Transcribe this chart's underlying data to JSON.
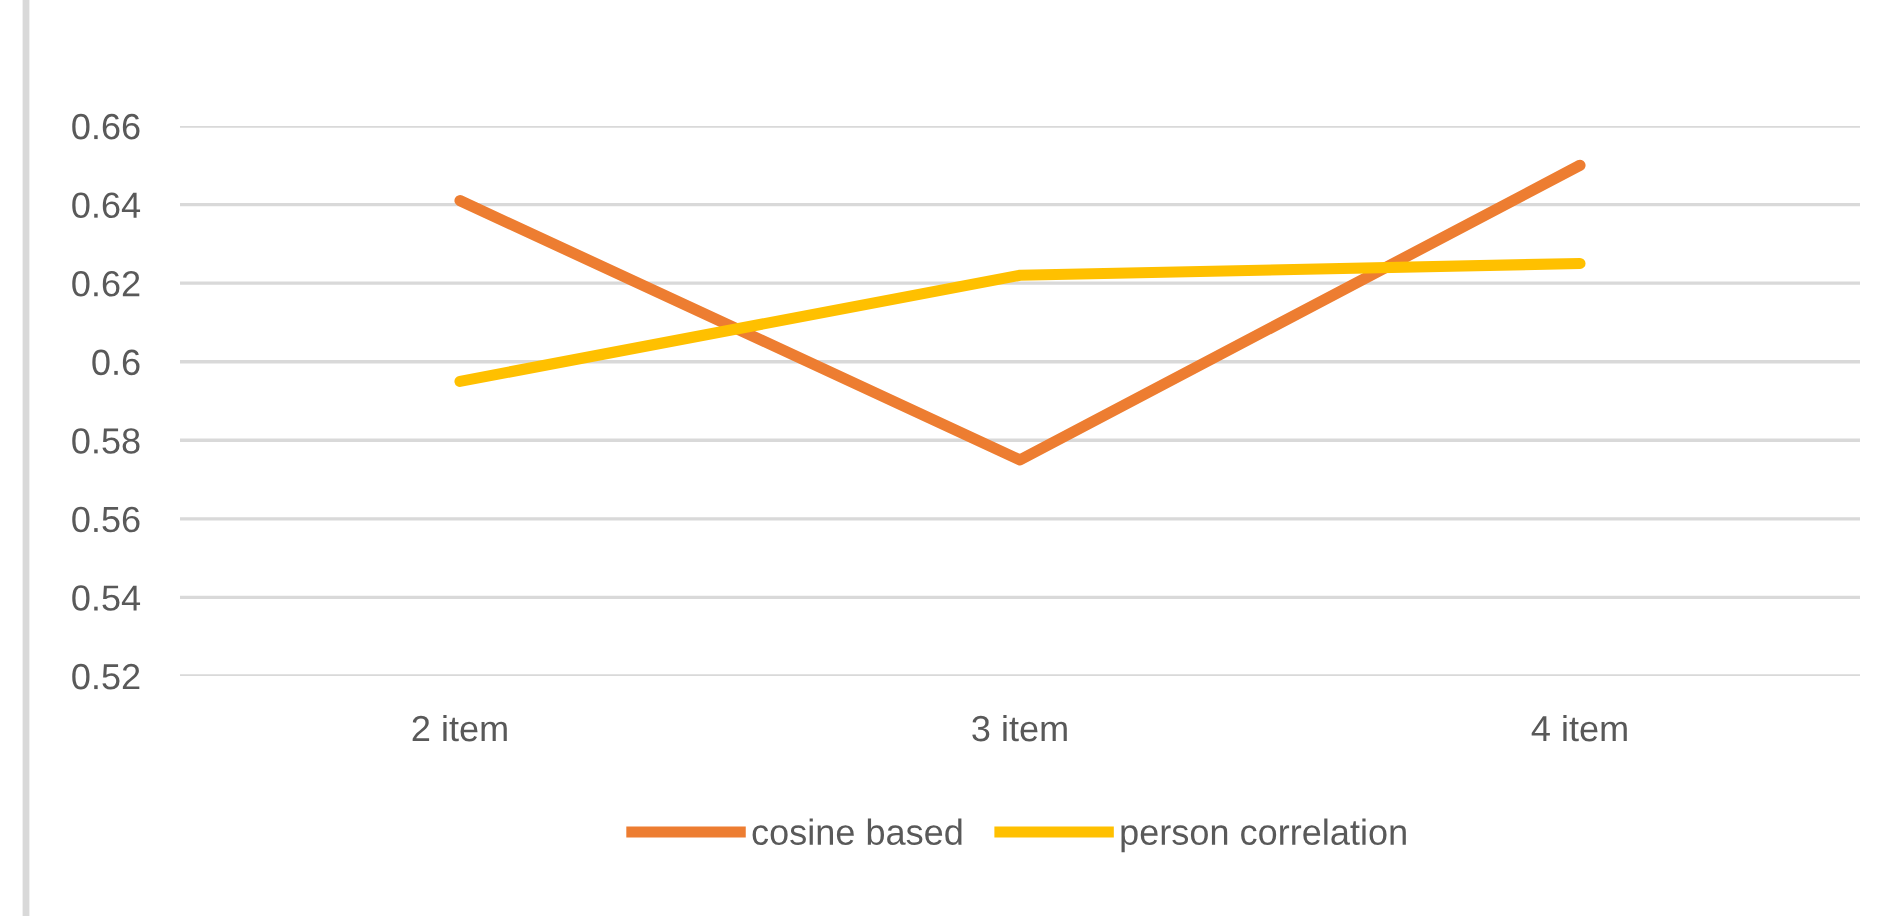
{
  "chart_data": {
    "type": "line",
    "categories": [
      "2 item",
      "3 item",
      "4 item"
    ],
    "series": [
      {
        "name": "cosine based",
        "color": "#ed7d31",
        "values": [
          0.641,
          0.575,
          0.65
        ]
      },
      {
        "name": "person correlation",
        "color": "#ffc000",
        "values": [
          0.595,
          0.622,
          0.625
        ]
      }
    ],
    "ylim": [
      0.52,
      0.66
    ],
    "yticks": [
      0.52,
      0.54,
      0.56,
      0.58,
      {
        "value": 0.6,
        "label": "0.6"
      },
      0.62,
      0.64,
      0.66
    ],
    "grid": "y",
    "legend": "bottom",
    "marker": "none",
    "line_style": "solid"
  }
}
